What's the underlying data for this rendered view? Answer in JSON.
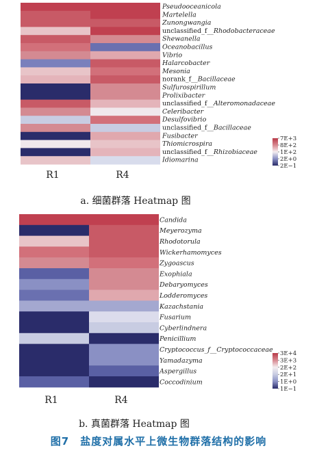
{
  "figure_caption": "图7　盐度对属水平上微生物群落结构的影响",
  "chart_data": [
    {
      "type": "heatmap",
      "title": "a. 细菌群落 Heatmap 图",
      "columns": [
        "R1",
        "R4"
      ],
      "rows": [
        "Pseudooceanicola",
        "Martelella",
        "Zunongwangia",
        "unclassified_f__Rhodobacteraceae",
        "Shewanella",
        "Oceanobacillus",
        "Vibrio",
        "Halarcobacter",
        "Mesonia",
        "norank_f__Bacillaceae",
        "Sulfurospirillum",
        "Prolixibacter",
        "unclassified_f__Alteromonadaceae",
        "Celeribacter",
        "Desulfovibrio",
        "unclassified_f__Bacillaceae",
        "Fusibacter",
        "Thiomicrospira",
        "unclassified_f__Rhizobiaceae",
        "Idiomarina"
      ],
      "cell_colors": [
        [
          "#c04050",
          "#c04050"
        ],
        [
          "#c85a66",
          "#c04050"
        ],
        [
          "#c85a66",
          "#c85a66"
        ],
        [
          "#e8c4c8",
          "#c04050"
        ],
        [
          "#c85a66",
          "#d48a92"
        ],
        [
          "#d2707a",
          "#6a70b0"
        ],
        [
          "#d48a92",
          "#e0a8ae"
        ],
        [
          "#7a80bc",
          "#c85a66"
        ],
        [
          "#e8c4c8",
          "#d2707a"
        ],
        [
          "#e4b4ba",
          "#c85a66"
        ],
        [
          "#2a2c6a",
          "#d48a92"
        ],
        [
          "#2a2c6a",
          "#d48a92"
        ],
        [
          "#c85a66",
          "#e4b4ba"
        ],
        [
          "#d48a92",
          "#f0e8ec"
        ],
        [
          "#c8cce2",
          "#d2707a"
        ],
        [
          "#d48a92",
          "#c8cce2"
        ],
        [
          "#2a2c6a",
          "#e0a8ae"
        ],
        [
          "#f0e8ec",
          "#e8c4c8"
        ],
        [
          "#2a2c6a",
          "#e4b4ba"
        ],
        [
          "#e8c4c8",
          "#d8dcec"
        ]
      ],
      "legend": {
        "labels": [
          "7E+3",
          "8E+2",
          "1E+2",
          "2E+0",
          "2E−1"
        ],
        "colors": [
          "#b83a48",
          "#d88890",
          "#f4eef0",
          "#8a90c4",
          "#2a2c6a"
        ]
      }
    },
    {
      "type": "heatmap",
      "title": "b. 真菌群落 Heatmap 图",
      "columns": [
        "R1",
        "R4"
      ],
      "rows": [
        "Candida",
        "Meyerozyma",
        "Rhodotorula",
        "Wickerhamomyces",
        "Zygoascus",
        "Exophiala",
        "Debaryomyces",
        "Lodderomyces",
        "Kazachstania",
        "Fusarium",
        "Cyberlindnera",
        "Penicillium",
        "Cryptococcus_f__Cryptococcaceae",
        "Yamadazyma",
        "Aspergillus",
        "Coccodinium"
      ],
      "cell_colors": [
        [
          "#c04050",
          "#c04050"
        ],
        [
          "#2a2c6a",
          "#c85a66"
        ],
        [
          "#e8c4c8",
          "#c85a66"
        ],
        [
          "#d2707a",
          "#c85a66"
        ],
        [
          "#d48a92",
          "#d2707a"
        ],
        [
          "#5a60a4",
          "#d48a92"
        ],
        [
          "#8a90c4",
          "#d48a92"
        ],
        [
          "#6a70b0",
          "#e0a8ae"
        ],
        [
          "#a4a8d0",
          "#a4a8d0"
        ],
        [
          "#2a2c6a",
          "#dcdcec"
        ],
        [
          "#2a2c6a",
          "#c8cce2"
        ],
        [
          "#c8cce2",
          "#2a2c6a"
        ],
        [
          "#2a2c6a",
          "#8a90c4"
        ],
        [
          "#2a2c6a",
          "#8a90c4"
        ],
        [
          "#2a2c6a",
          "#5a60a4"
        ],
        [
          "#5a60a4",
          "#2a2c6a"
        ]
      ],
      "legend": {
        "labels": [
          "3E+4",
          "3E+3",
          "2E+2",
          "2E+1",
          "1E+0",
          "1E−1"
        ],
        "colors": [
          "#b83a48",
          "#d88890",
          "#f4eef0",
          "#c8cce2",
          "#8a90c4",
          "#2a2c6a"
        ]
      }
    }
  ]
}
